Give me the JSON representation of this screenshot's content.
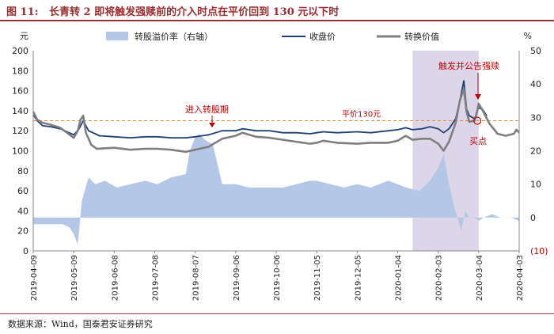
{
  "figure": {
    "number": "图 11:",
    "title": "长青转 2 即将触发强赎前的介入时点在平价回到 130 元以下时",
    "source": "数据来源：Wind，国泰君安证券研究"
  },
  "chart_data": {
    "type": "line",
    "left_axis_unit": "元",
    "right_axis_unit": "%",
    "ylim_left": [
      0,
      200
    ],
    "yticks_left": [
      0,
      20,
      40,
      60,
      80,
      100,
      120,
      140,
      160,
      180,
      200
    ],
    "ylim_right": [
      -10,
      50
    ],
    "yticks_right": [
      -10,
      0,
      10,
      20,
      30,
      40,
      50
    ],
    "yticks_right_labels": [
      "(10)",
      "0",
      "10",
      "20",
      "30",
      "40",
      "50"
    ],
    "xlim": [
      "2019-04-09",
      "2020-04-03"
    ],
    "x_tick_labels": [
      "2019-04-09",
      "2019-05-09",
      "2019-06-08",
      "2019-07-08",
      "2019-08-07",
      "2019-09-06",
      "2019-10-06",
      "2019-11-05",
      "2019-12-05",
      "2020-01-04",
      "2020-02-03",
      "2020-03-04",
      "2020-04-03"
    ],
    "legend": [
      "转股溢价率（右轴）",
      "收盘价",
      "转换价值"
    ],
    "series": [
      {
        "name": "收盘价",
        "color": "#1f3f73",
        "axis": "left",
        "points": [
          [
            "2019-04-09",
            136
          ],
          [
            "2019-04-12",
            130
          ],
          [
            "2019-04-16",
            125
          ],
          [
            "2019-04-22",
            124
          ],
          [
            "2019-04-29",
            122
          ],
          [
            "2019-05-04",
            119
          ],
          [
            "2019-05-09",
            116
          ],
          [
            "2019-05-13",
            122
          ],
          [
            "2019-05-16",
            130
          ],
          [
            "2019-05-20",
            120
          ],
          [
            "2019-05-28",
            115
          ],
          [
            "2019-06-08",
            114
          ],
          [
            "2019-06-20",
            113
          ],
          [
            "2019-07-01",
            114
          ],
          [
            "2019-07-10",
            114
          ],
          [
            "2019-07-20",
            113
          ],
          [
            "2019-07-31",
            113
          ],
          [
            "2019-08-07",
            114
          ],
          [
            "2019-08-17",
            116
          ],
          [
            "2019-08-27",
            120
          ],
          [
            "2019-09-06",
            120
          ],
          [
            "2019-09-11",
            122
          ],
          [
            "2019-09-16",
            121
          ],
          [
            "2019-09-21",
            120
          ],
          [
            "2019-10-01",
            120
          ],
          [
            "2019-10-11",
            118
          ],
          [
            "2019-10-21",
            118
          ],
          [
            "2019-10-31",
            117
          ],
          [
            "2019-11-05",
            118
          ],
          [
            "2019-11-10",
            119
          ],
          [
            "2019-11-20",
            118
          ],
          [
            "2019-12-05",
            119
          ],
          [
            "2019-12-15",
            118
          ],
          [
            "2019-12-28",
            120
          ],
          [
            "2020-01-04",
            121
          ],
          [
            "2020-01-10",
            123
          ],
          [
            "2020-01-15",
            121
          ],
          [
            "2020-01-22",
            122
          ],
          [
            "2020-01-28",
            124
          ],
          [
            "2020-02-03",
            122
          ],
          [
            "2020-02-07",
            118
          ],
          [
            "2020-02-11",
            122
          ],
          [
            "2020-02-16",
            132
          ],
          [
            "2020-02-19",
            150
          ],
          [
            "2020-02-22",
            170
          ],
          [
            "2020-02-24",
            142
          ],
          [
            "2020-02-26",
            135
          ],
          [
            "2020-03-01",
            132
          ],
          [
            "2020-03-03",
            140
          ],
          [
            "2020-03-04",
            143
          ],
          [
            "2020-03-07",
            141
          ],
          [
            "2020-03-10",
            135
          ]
        ]
      },
      {
        "name": "转换价值",
        "color": "#7f7f7f",
        "axis": "left",
        "points": [
          [
            "2019-04-09",
            139
          ],
          [
            "2019-04-12",
            131
          ],
          [
            "2019-04-16",
            128
          ],
          [
            "2019-04-22",
            126
          ],
          [
            "2019-04-29",
            123
          ],
          [
            "2019-05-04",
            118
          ],
          [
            "2019-05-09",
            113
          ],
          [
            "2019-05-12",
            120
          ],
          [
            "2019-05-14",
            131
          ],
          [
            "2019-05-16",
            135
          ],
          [
            "2019-05-18",
            118
          ],
          [
            "2019-05-22",
            106
          ],
          [
            "2019-05-26",
            102
          ],
          [
            "2019-06-08",
            103
          ],
          [
            "2019-06-20",
            101
          ],
          [
            "2019-07-01",
            102
          ],
          [
            "2019-07-10",
            102
          ],
          [
            "2019-07-20",
            101
          ],
          [
            "2019-07-31",
            99
          ],
          [
            "2019-08-07",
            101
          ],
          [
            "2019-08-17",
            104
          ],
          [
            "2019-08-27",
            112
          ],
          [
            "2019-09-06",
            115
          ],
          [
            "2019-09-11",
            118
          ],
          [
            "2019-09-16",
            116
          ],
          [
            "2019-09-21",
            114
          ],
          [
            "2019-10-01",
            113
          ],
          [
            "2019-10-11",
            111
          ],
          [
            "2019-10-21",
            109
          ],
          [
            "2019-10-31",
            107
          ],
          [
            "2019-11-05",
            108
          ],
          [
            "2019-11-10",
            110
          ],
          [
            "2019-11-20",
            108
          ],
          [
            "2019-12-05",
            107
          ],
          [
            "2019-12-15",
            108
          ],
          [
            "2019-12-28",
            108
          ],
          [
            "2020-01-04",
            110
          ],
          [
            "2020-01-10",
            115
          ],
          [
            "2020-01-15",
            111
          ],
          [
            "2020-01-22",
            112
          ],
          [
            "2020-01-28",
            112
          ],
          [
            "2020-02-03",
            107
          ],
          [
            "2020-02-07",
            100
          ],
          [
            "2020-02-11",
            109
          ],
          [
            "2020-02-16",
            128
          ],
          [
            "2020-02-19",
            150
          ],
          [
            "2020-02-22",
            162
          ],
          [
            "2020-02-24",
            139
          ],
          [
            "2020-02-26",
            129
          ],
          [
            "2020-03-01",
            130
          ],
          [
            "2020-03-03",
            140
          ],
          [
            "2020-03-04",
            147
          ],
          [
            "2020-03-07",
            140
          ],
          [
            "2020-03-12",
            127
          ],
          [
            "2020-03-18",
            117
          ],
          [
            "2020-03-24",
            115
          ],
          [
            "2020-03-30",
            117
          ],
          [
            "2020-04-01",
            121
          ],
          [
            "2020-04-03",
            118
          ]
        ]
      },
      {
        "name": "转股溢价率（右轴）",
        "color": "#b4c7e7",
        "axis": "right",
        "type": "area",
        "points": [
          [
            "2019-04-09",
            -2
          ],
          [
            "2019-04-20",
            -2
          ],
          [
            "2019-05-01",
            -2
          ],
          [
            "2019-05-06",
            -3
          ],
          [
            "2019-05-09",
            -5
          ],
          [
            "2019-05-12",
            -8
          ],
          [
            "2019-05-15",
            5
          ],
          [
            "2019-05-20",
            12
          ],
          [
            "2019-05-25",
            10
          ],
          [
            "2019-06-01",
            11
          ],
          [
            "2019-06-10",
            9
          ],
          [
            "2019-06-20",
            10
          ],
          [
            "2019-07-01",
            11
          ],
          [
            "2019-07-10",
            10
          ],
          [
            "2019-07-20",
            12
          ],
          [
            "2019-07-31",
            13
          ],
          [
            "2019-08-03",
            20
          ],
          [
            "2019-08-07",
            24
          ],
          [
            "2019-08-10",
            25
          ],
          [
            "2019-08-15",
            23
          ],
          [
            "2019-08-20",
            22
          ],
          [
            "2019-08-27",
            10
          ],
          [
            "2019-09-06",
            10
          ],
          [
            "2019-09-16",
            9
          ],
          [
            "2019-10-01",
            9
          ],
          [
            "2019-10-11",
            9
          ],
          [
            "2019-10-21",
            10
          ],
          [
            "2019-10-31",
            11
          ],
          [
            "2019-11-05",
            11
          ],
          [
            "2019-11-15",
            10
          ],
          [
            "2019-11-25",
            9
          ],
          [
            "2019-12-05",
            10
          ],
          [
            "2019-12-15",
            9
          ],
          [
            "2019-12-28",
            11
          ],
          [
            "2020-01-04",
            10
          ],
          [
            "2020-01-10",
            9
          ],
          [
            "2020-01-20",
            8
          ],
          [
            "2020-01-28",
            11
          ],
          [
            "2020-02-03",
            15
          ],
          [
            "2020-02-07",
            19
          ],
          [
            "2020-02-11",
            10
          ],
          [
            "2020-02-15",
            3
          ],
          [
            "2020-02-18",
            -1
          ],
          [
            "2020-02-20",
            -4
          ],
          [
            "2020-02-23",
            2
          ],
          [
            "2020-02-26",
            0
          ],
          [
            "2020-03-01",
            0
          ],
          [
            "2020-03-04",
            -1
          ],
          [
            "2020-03-08",
            0
          ],
          [
            "2020-03-14",
            1
          ],
          [
            "2020-03-20",
            0
          ],
          [
            "2020-03-28",
            0
          ],
          [
            "2020-04-03",
            -1
          ]
        ]
      }
    ],
    "reference_line": {
      "label": "平价130元",
      "value": 130,
      "axis": "left",
      "color": "#e6873a",
      "style": "dashed"
    },
    "shaded_region": {
      "from": "2020-01-15",
      "to": "2020-03-04",
      "color": "#ddd5e8"
    },
    "annotations": [
      {
        "text": "进入转股期",
        "x": "2019-10-15",
        "y": 140,
        "color": "#c00000"
      },
      {
        "text": "触发并公告强赎",
        "x": "2020-03-07",
        "y": 180,
        "color": "#c00000"
      },
      {
        "text": "买点",
        "x": "2020-03-03",
        "y": 115,
        "color": "#c00000"
      }
    ]
  }
}
